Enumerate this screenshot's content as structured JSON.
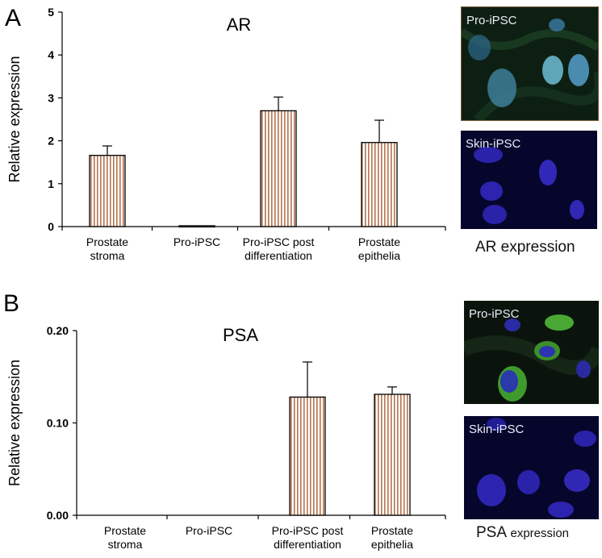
{
  "colors": {
    "bar_fill": "#ffffff",
    "bar_hatch": "#b4744e",
    "axis": "#000000"
  },
  "chart_data": [
    {
      "panel_label": "A",
      "type": "bar",
      "title": "AR",
      "ylabel": "Relative expression",
      "ylim": [
        0,
        5
      ],
      "yticks": [
        "0",
        "1",
        "2",
        "3",
        "4",
        "5"
      ],
      "categories": [
        [
          "Prostate",
          "stroma"
        ],
        [
          "Pro-iPSC"
        ],
        [
          "Pro-iPSC post",
          "differentiation"
        ],
        [
          "Prostate",
          "epithelia"
        ]
      ],
      "values": [
        1.66,
        0.02,
        2.7,
        1.96
      ],
      "errors": [
        0.22,
        0.0,
        0.32,
        0.52
      ],
      "grid": false
    },
    {
      "panel_label": "B",
      "type": "bar",
      "title": "PSA",
      "ylabel": "Relative expression",
      "ylim": [
        0,
        0.2
      ],
      "yticks": [
        "0.00",
        "0.10",
        "0.20"
      ],
      "categories": [
        [
          "Prostate",
          "stroma"
        ],
        [
          "Pro-iPSC"
        ],
        [
          "Pro-iPSC post",
          "differentiation"
        ],
        [
          "Prostate",
          "epithelia"
        ]
      ],
      "values": [
        0,
        0,
        0.128,
        0.131
      ],
      "errors": [
        0,
        0,
        0.038,
        0.008
      ],
      "grid": false
    }
  ],
  "images": {
    "ar_top_label": "Pro-iPSC",
    "ar_bottom_label": "Skin-iPSC",
    "ar_caption": "AR expression",
    "psa_top_label": "Pro-iPSC",
    "psa_bottom_label": "Skin-iPSC",
    "psa_caption_main": "PSA",
    "psa_caption_small": "expression"
  }
}
